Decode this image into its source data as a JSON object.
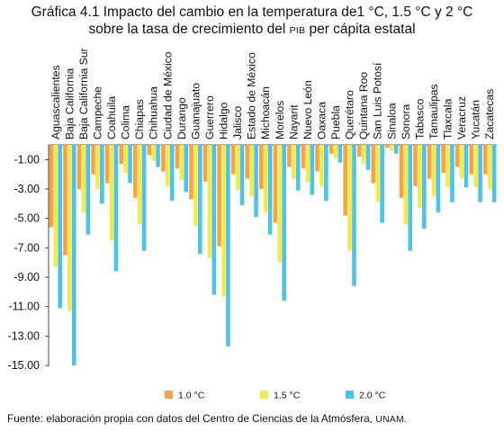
{
  "title": {
    "prefix": "Gráfica 4.1",
    "line1_rest": "Impacto del cambio en la temperatura de1 °C, 1.5 °C y 2 °C",
    "line2_a": "sobre la tasa de crecimiento del",
    "line2_sc": "PIB",
    "line2_b": "per cápita estatal"
  },
  "source": {
    "text": "Fuente: elaboración propia con datos del Centro de Ciencias de la Atmósfera,",
    "org": "UNAM."
  },
  "chart_data": {
    "type": "bar",
    "orientation": "vertical-negative",
    "ylim": [
      -15,
      0
    ],
    "yticks": [
      -1,
      -3,
      -5,
      -7,
      -9,
      -11,
      -13,
      -15
    ],
    "ytick_labels": [
      "-1.00",
      "-3.00",
      "-5.00",
      "-7.00",
      "-9.00",
      "-11.00",
      "-13.00",
      "-15.00"
    ],
    "grid": false,
    "legend_position": "bottom",
    "categories": [
      "Aguascalientes",
      "Baja California",
      "Baja California Sur",
      "Campeche",
      "Coahuila",
      "Colima",
      "Chiapas",
      "Chihuahua",
      "Ciudad de México",
      "Durango",
      "Guanajuato",
      "Guerrero",
      "Hidalgo",
      "Jalisco",
      "Estado de México",
      "Michoacán",
      "Morelos",
      "Nayarit",
      "Nuevo León",
      "Oaxaca",
      "Puebla",
      "Querétaro",
      "Quintana Roo",
      "San Luis Potosí",
      "Sinaloa",
      "Sonora",
      "Tabasco",
      "Tamaulipas",
      "Tlaxcala",
      "Veracruz",
      "Yucatán",
      "Zacatecas"
    ],
    "series": [
      {
        "name": "1.0 °C",
        "color": "#F5A34A",
        "values": [
          -5.6,
          -7.5,
          -3.0,
          -2.0,
          -2.6,
          -1.3,
          -3.6,
          -0.7,
          -1.8,
          -1.6,
          -3.7,
          -2.5,
          -6.9,
          -2.0,
          -2.3,
          -3.0,
          -5.3,
          -1.5,
          -1.6,
          -1.8,
          -0.6,
          -4.8,
          -0.8,
          -2.6,
          -0.2,
          -3.6,
          -2.8,
          -2.3,
          -1.9,
          -1.5,
          -2.0,
          -2.0
        ]
      },
      {
        "name": "1.5 °C",
        "color": "#F4EA4C",
        "values": [
          -8.3,
          -11.3,
          -4.6,
          -3.0,
          -6.5,
          -1.9,
          -5.4,
          -1.1,
          -2.8,
          -2.4,
          -5.5,
          -7.7,
          -10.3,
          -3.1,
          -3.5,
          -4.6,
          -8.0,
          -2.3,
          -2.5,
          -2.8,
          -0.9,
          -7.2,
          -1.3,
          -3.9,
          -0.4,
          -5.4,
          -4.3,
          -3.5,
          -2.9,
          -2.3,
          -2.9,
          -3.0
        ]
      },
      {
        "name": "2.0 °C",
        "color": "#4CC3EA",
        "values": [
          -11.1,
          -15.0,
          -6.1,
          -4.0,
          -8.6,
          -2.6,
          -7.2,
          -1.5,
          -3.8,
          -3.2,
          -7.4,
          -10.2,
          -13.7,
          -4.1,
          -4.9,
          -6.1,
          -10.6,
          -3.1,
          -3.4,
          -3.8,
          -1.2,
          -9.6,
          -1.7,
          -5.3,
          -0.6,
          -7.2,
          -5.7,
          -4.6,
          -3.9,
          -2.9,
          -3.9,
          -3.9
        ]
      }
    ]
  }
}
